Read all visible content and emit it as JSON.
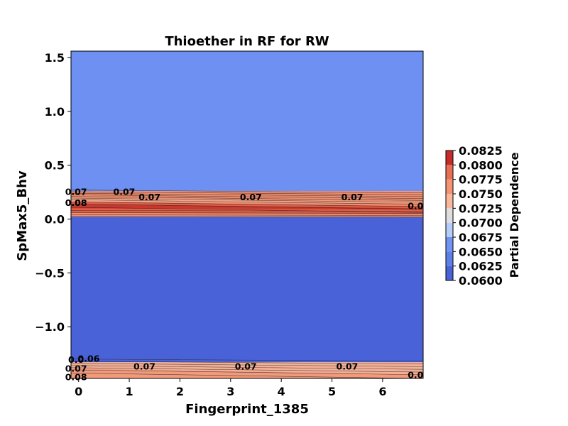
{
  "chart_data": {
    "type": "heatmap",
    "subtype": "filled-contour partial dependence plot",
    "title": "Thioether in RF for RW",
    "xlabel": "Fingerprint_1385",
    "ylabel": "SpMax5_Bhv",
    "xlim": [
      -0.15,
      6.8
    ],
    "ylim": [
      -1.48,
      1.56
    ],
    "x_ticks": [
      0,
      1,
      2,
      3,
      4,
      5,
      6
    ],
    "x_tick_labels": [
      "0",
      "1",
      "2",
      "3",
      "4",
      "5",
      "6"
    ],
    "y_ticks": [
      1.5,
      1.0,
      0.5,
      0.0,
      -0.5,
      -1.0
    ],
    "y_tick_labels": [
      "1.5",
      "1.0",
      "0.5",
      "0.0",
      "−0.5",
      "−1.0"
    ],
    "colorbar": {
      "label": "Partial Dependence",
      "min": 0.06,
      "max": 0.0825,
      "ticks": [
        0.0825,
        0.08,
        0.0775,
        0.075,
        0.0725,
        0.07,
        0.0675,
        0.065,
        0.0625,
        0.06
      ],
      "tick_labels": [
        "0.0825",
        "0.0800",
        "0.0775",
        "0.0750",
        "0.0725",
        "0.0700",
        "0.0675",
        "0.0650",
        "0.0625",
        "0.0600"
      ],
      "levels": [
        0.06,
        0.0625,
        0.065,
        0.0675,
        0.07,
        0.0725,
        0.075,
        0.0775,
        0.08,
        0.0825
      ],
      "colors": [
        "#4a62d8",
        "#5f7fe8",
        "#7194f3",
        "#b5cdf8",
        "#dfdde0",
        "#f7b89c",
        "#f59473",
        "#e66f54",
        "#c52c2a"
      ]
    },
    "bands": [
      {
        "y_from": 0.26,
        "y_to": 1.56,
        "level": 0.0637,
        "color": "#6d90f2"
      },
      {
        "y_from": 0.02,
        "y_to": 0.26,
        "level": 0.075,
        "color": "#f08e6f",
        "note": "high partial dependence band near SpMax5_Bhv = 0.1"
      },
      {
        "y_from": -1.33,
        "y_to": 0.02,
        "level": 0.061,
        "color": "#4a62d8"
      },
      {
        "y_from": -1.48,
        "y_to": -1.33,
        "level": 0.073,
        "color": "#f4b097",
        "note": "elevated band near SpMax5_Bhv = -1.42"
      }
    ],
    "contour_labels": [
      {
        "text": "0.07",
        "x": 0.9,
        "y": 0.25
      },
      {
        "text": "0.07",
        "x": 1.4,
        "y": 0.2
      },
      {
        "text": "0.07",
        "x": 3.4,
        "y": 0.2
      },
      {
        "text": "0.07",
        "x": 5.4,
        "y": 0.2
      },
      {
        "text": "0.07",
        "x": -0.05,
        "y": 0.25
      },
      {
        "text": "0.08",
        "x": -0.05,
        "y": 0.15
      },
      {
        "text": "0.08",
        "x": -0.05,
        "y": 0.15
      },
      {
        "text": "0.06",
        "x": 0.2,
        "y": -1.3
      },
      {
        "text": "0.07",
        "x": 1.3,
        "y": -1.37
      },
      {
        "text": "0.07",
        "x": 3.3,
        "y": -1.37
      },
      {
        "text": "0.07",
        "x": 5.3,
        "y": -1.37
      },
      {
        "text": "0.0",
        "x": -0.05,
        "y": -1.31
      },
      {
        "text": "0.07",
        "x": -0.05,
        "y": -1.39
      },
      {
        "text": "0.08",
        "x": -0.05,
        "y": -1.47
      },
      {
        "text": "0.0",
        "x": 6.65,
        "y": -1.45
      },
      {
        "text": "0.0",
        "x": 6.65,
        "y": 0.12
      }
    ]
  }
}
